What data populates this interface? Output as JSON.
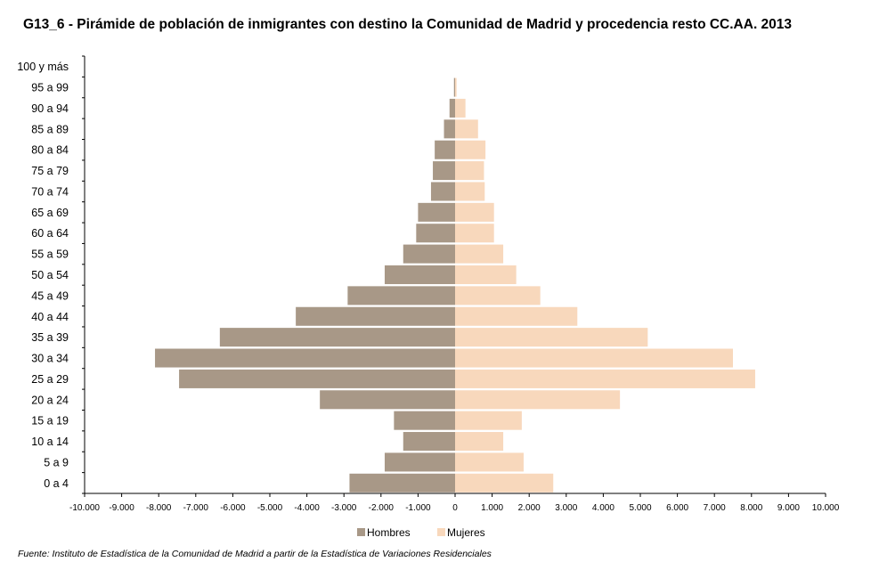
{
  "chart_data": {
    "type": "bar",
    "orientation": "horizontal",
    "title": "G13_6 - Pirámide de población de inmigrantes con destino la Comunidad de Madrid y procedencia resto CC.AA.  2013",
    "source": "Fuente: Instituto de Estadística de la Comunidad de Madrid a partir de la Estadística de Variaciones Residenciales",
    "categories": [
      "0 a 4",
      "5 a 9",
      "10 a 14",
      "15 a 19",
      "20 a 24",
      "25 a 29",
      "30 a 34",
      "35 a 39",
      "40 a 44",
      "45 a 49",
      "50 a 54",
      "55 a 59",
      "60 a 64",
      "65 a 69",
      "70 a 74",
      "75 a 79",
      "80 a 84",
      "85 a 89",
      "90 a 94",
      "95 a 99",
      "100 y más"
    ],
    "series": [
      {
        "name": "Hombres",
        "color": "#a89887",
        "values": [
          -2850,
          -1900,
          -1400,
          -1650,
          -3650,
          -7450,
          -8100,
          -6350,
          -4300,
          -2900,
          -1900,
          -1400,
          -1050,
          -1000,
          -650,
          -600,
          -550,
          -300,
          -150,
          -30,
          0
        ]
      },
      {
        "name": "Mujeres",
        "color": "#f8d8bc",
        "values": [
          2650,
          1850,
          1300,
          1800,
          4450,
          8100,
          7500,
          5200,
          3300,
          2300,
          1650,
          1300,
          1050,
          1050,
          800,
          780,
          820,
          620,
          280,
          40,
          0
        ]
      }
    ],
    "xlim": [
      -10000,
      10000
    ],
    "x_ticks": [
      "-10.000",
      "-9.000",
      "-8.000",
      "-7.000",
      "-6.000",
      "-5.000",
      "-4.000",
      "-3.000",
      "-2.000",
      "-1.000",
      "0",
      "1.000",
      "2.000",
      "3.000",
      "4.000",
      "5.000",
      "6.000",
      "7.000",
      "8.000",
      "9.000",
      "10.000"
    ],
    "grid": false,
    "legend_position": "bottom"
  }
}
